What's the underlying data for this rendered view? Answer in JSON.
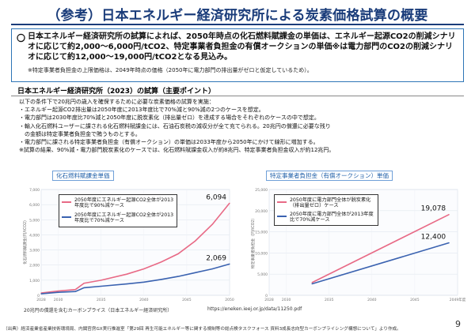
{
  "title": "（参考）日本エネルギー経済研究所による炭素価格試算の概要",
  "summary": {
    "marker": "〇",
    "text": "日本エネルギー経済研究所の試算によれば、2050年時点の化石燃料賦課金の単価は、エネルギー起源CO2の削減シナリオに応じて約2,000～6,000円/tCO2、特定事業者負担金の有償オークションの単価※は電力部門のCO2の削減シナリオに応じて約12,000～19,000円/tCO2となる見込み。",
    "note": "※特定事業者負担金の上限価格は、2049年時点の価格（2050年に電力部門の排出量がゼロと仮定しているため）。"
  },
  "details": {
    "heading": "日本エネルギー経済研究所（2023）の試算（主要ポイント）",
    "intro": "以下の条件下で20兆円の歳入を確保するために必要な炭素価格の試算を実施：",
    "bullets": [
      "・エネルギー起源CO2排出量は2050年度に2013年度比で70%減と90%減の2つのケースを想定。",
      "・電力部門は2030年度比70%減と2050年度に脱炭素化（排出量ゼロ）を達成する場合をそれぞれのケースの中で想定。",
      "・輸入化石燃料ユーザーに課される化石燃料賦課金には、石油石炭税の減収分が全て充てられる。20兆円の償還に必要な残り",
      "　の金額は特定事業者負担金で賄うものとする。",
      "・電力部門に課される特定事業者負担金（有償オークション）の単価は2033年度から2050年にかけて線形に増加する。"
    ],
    "footer": "※試算の結果、90%減・電力部門脱炭素化のケースでは、化石燃料賦課金収入が約8兆円、特定事業者負担金収入が約12兆円。"
  },
  "charts": {
    "left_title": "化石燃料賦課金単価",
    "right_title": "特定事業者負担金（有償オークション）単価",
    "left_ylabel": "化石燃料賦課金(円/tCO2)",
    "right_ylabel": "特定事業者負担金（円/tCO2）"
  },
  "chart_data": [
    {
      "type": "line",
      "title": "化石燃料賦課金単価",
      "ylabel": "化石燃料賦課金(円/tCO2)",
      "xlim": [
        2028,
        2050
      ],
      "ylim": [
        0,
        7000
      ],
      "x_ticks": [
        "2028",
        "2030",
        "2035",
        "2040",
        "2045",
        "2050"
      ],
      "y_ticks": [
        "0",
        "1,000",
        "2,000",
        "3,000",
        "4,000",
        "5,000",
        "6,000",
        "7,000"
      ],
      "grid": true,
      "legend_placement": "top-left",
      "series": [
        {
          "name": "2050年度にエネルギー起源CO2全体が2013年度比で90%減ケース",
          "color": "#e86a86",
          "x": [
            2028,
            2030,
            2032,
            2033,
            2035,
            2038,
            2040,
            2042,
            2044,
            2046,
            2048,
            2050
          ],
          "y": [
            150,
            280,
            380,
            800,
            1000,
            1400,
            1750,
            2200,
            2750,
            3600,
            4700,
            6094
          ],
          "end_label": "6,094"
        },
        {
          "name": "2050年度にエネルギー起源CO2全体が2013年度比で70%減ケース",
          "color": "#3a62b0",
          "x": [
            2028,
            2030,
            2032,
            2033,
            2035,
            2038,
            2040,
            2042,
            2044,
            2046,
            2048,
            2050
          ],
          "y": [
            100,
            200,
            250,
            500,
            600,
            750,
            870,
            1050,
            1250,
            1500,
            1750,
            2069
          ],
          "end_label": "2,069"
        }
      ]
    },
    {
      "type": "line",
      "title": "特定事業者負担金（有償オークション）単価",
      "ylabel": "特定事業者負担金（円/tCO2）",
      "xlim": [
        2028,
        2050
      ],
      "ylim": [
        0,
        25000
      ],
      "x_ticks": [
        "2028",
        "2030",
        "2035",
        "2040",
        "2045",
        "2049年度"
      ],
      "y_ticks": [
        "0",
        "5,000",
        "10,000",
        "15,000",
        "20,000",
        "25,000"
      ],
      "grid": true,
      "legend_placement": "top-left",
      "series": [
        {
          "name": "2050年度に電力部門全体が脱炭素化（排出量ゼロ）ケース",
          "color": "#e86a86",
          "x": [
            2033,
            2049
          ],
          "y": [
            3000,
            19078
          ],
          "end_label": "19,078"
        },
        {
          "name": "2050年度に電力部門全体が2013年度比で70%減ケース",
          "color": "#3a62b0",
          "x": [
            2033,
            2049
          ],
          "y": [
            2700,
            12400
          ],
          "end_label": "12,400"
        }
      ]
    }
  ],
  "footnote": "20兆円の償還を含むカーボンプライス（日本エネルギー経済研究所）",
  "url": "https://eneken.ieej.or.jp/data/11250.pdf",
  "source": "（出典）経済産業省産業技術環境局、内閣官房GX実行推進室「第29回 再生可能エネルギー等に関する規制等の総点検タスクフォース 資料3成長志向型カーボンプライシング構想について」より作成。",
  "page_number": "9"
}
